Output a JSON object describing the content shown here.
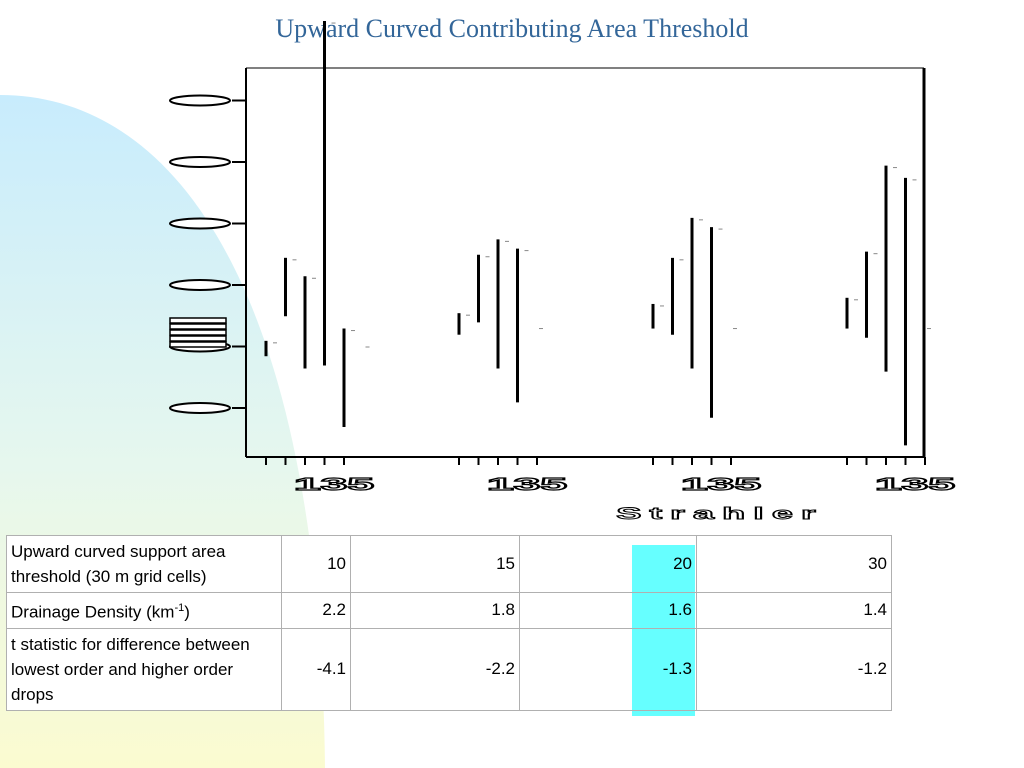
{
  "title": "Upward Curved Contributing Area Threshold",
  "colors": {
    "title": "#336699",
    "highlight": "#66ffff",
    "background_curve": "#cfeefc"
  },
  "chart_data": {
    "type": "range-bar",
    "title": "Upward Curved Contributing Area Threshold",
    "xlabel": "Strahler",
    "ylabel": "",
    "groups": [
      {
        "threshold": "10",
        "ranges": [
          [
            -0.15,
            0.1
          ],
          [
            0.5,
            1.45
          ],
          [
            -0.35,
            1.15
          ],
          [
            -0.3,
            5.3
          ],
          [
            -1.3,
            0.3
          ]
        ]
      },
      {
        "threshold": "15",
        "ranges": [
          [
            0.2,
            0.55
          ],
          [
            0.4,
            1.5
          ],
          [
            -0.35,
            1.75
          ],
          [
            -0.9,
            1.6
          ]
        ]
      },
      {
        "threshold": "20",
        "ranges": [
          [
            0.3,
            0.7
          ],
          [
            0.2,
            1.45
          ],
          [
            -0.35,
            2.1
          ],
          [
            -1.15,
            1.95
          ]
        ]
      },
      {
        "threshold": "30",
        "ranges": [
          [
            0.3,
            0.8
          ],
          [
            0.15,
            1.55
          ],
          [
            -0.4,
            2.95
          ],
          [
            -1.6,
            2.75
          ]
        ]
      }
    ],
    "x_tick_label": "135",
    "y_tick_count": 6,
    "grid": false
  },
  "table": {
    "rows": [
      {
        "label": "Upward curved support area threshold (30 m grid cells)",
        "values": [
          "10",
          "15",
          "20",
          "30"
        ]
      },
      {
        "label": "Drainage Density (km",
        "label_sup": "-1",
        "label_tail": ")",
        "values": [
          "2.2",
          "1.8",
          "1.6",
          "1.4"
        ]
      },
      {
        "label": "t statistic for difference between lowest order and higher order drops",
        "values": [
          "-4.1",
          "-2.2",
          "-1.3",
          "-1.2"
        ]
      }
    ]
  }
}
